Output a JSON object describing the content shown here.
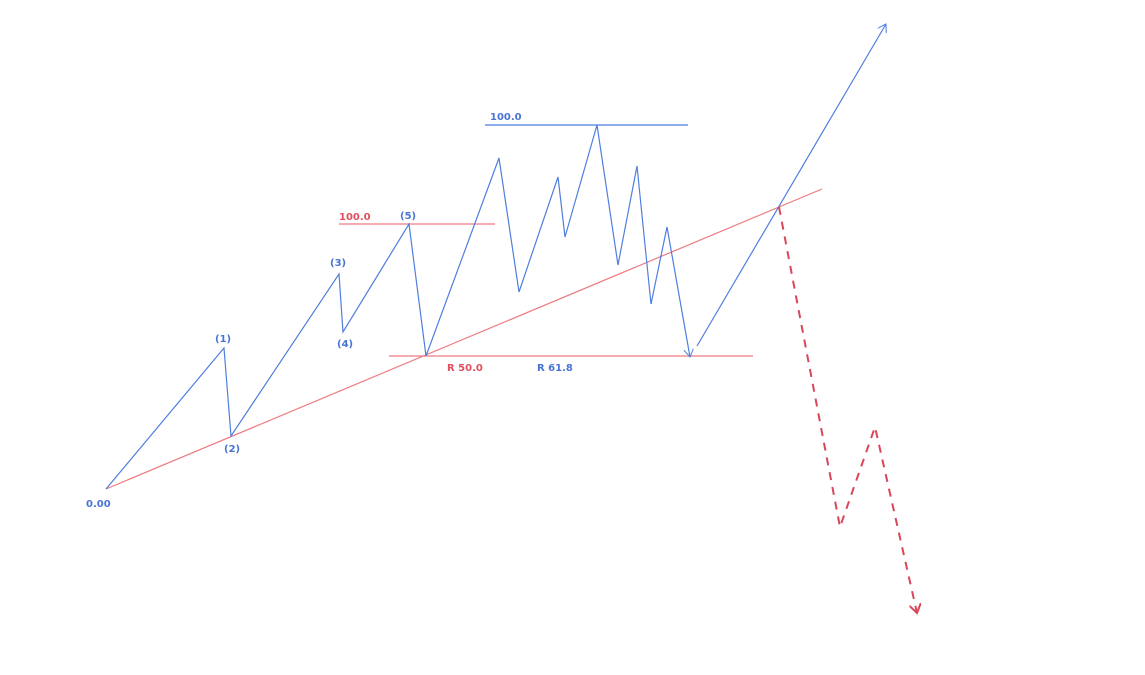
{
  "colors": {
    "wave": "#4f7ee0",
    "support": "#ee7a80",
    "projection": "#d9465a",
    "label_blue": "#4a74d4",
    "label_red": "#e0505e"
  },
  "labels": {
    "start": "0.00",
    "wave1": "(1)",
    "wave2": "(2)",
    "wave3": "(3)",
    "wave4": "(4)",
    "wave5": "(5)",
    "fib_red_top": "100.0",
    "fib_blue_top": "100.0",
    "retracement_red": "R 50.0",
    "retracement_blue": "R 61.8"
  }
}
